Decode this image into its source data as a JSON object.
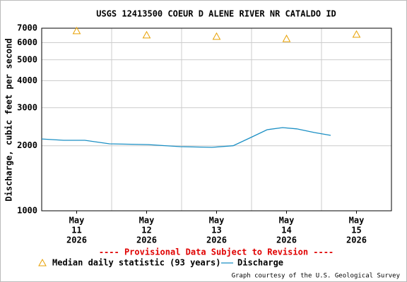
{
  "chart_data": {
    "type": "line",
    "title": "USGS 12413500 COEUR D ALENE RIVER NR CATALDO ID",
    "y_label": "Discharge, cubic feet per second",
    "annotation": "---- Provisional Data Subject to Revision ----",
    "credit": "Graph courtesy of the U.S. Geological Survey",
    "log_y": true,
    "grid": true,
    "xlim": [
      11,
      16
    ],
    "xgrid": [
      12,
      13,
      14,
      15
    ],
    "xticks": [
      {
        "value": 11.5,
        "label": [
          "May",
          "11",
          "2026"
        ]
      },
      {
        "value": 12.5,
        "label": [
          "May",
          "12",
          "2026"
        ]
      },
      {
        "value": 13.5,
        "label": [
          "May",
          "13",
          "2026"
        ]
      },
      {
        "value": 14.5,
        "label": [
          "May",
          "14",
          "2026"
        ]
      },
      {
        "value": 15.5,
        "label": [
          "May",
          "15",
          "2026"
        ]
      }
    ],
    "ylim": [
      1000,
      7000
    ],
    "yticks": [
      1000,
      2000,
      3000,
      4000,
      5000,
      6000,
      7000
    ],
    "series": [
      {
        "name": "Median daily statistic (93 years)",
        "color": "#e8a000",
        "marker": "triangle",
        "x": [
          11.5,
          12.5,
          13.5,
          14.5,
          15.5
        ],
        "values": [
          6800,
          6500,
          6400,
          6250,
          6550
        ]
      },
      {
        "name": "Discharge",
        "color": "#1a8fc4",
        "marker": "none",
        "x": [
          11.0,
          11.313,
          11.616,
          11.97,
          12.525,
          12.98,
          13.434,
          13.737,
          13.99,
          14.222,
          14.444,
          14.646,
          14.899,
          15.131
        ],
        "values": [
          2150,
          2120,
          2120,
          2042,
          2025,
          1981,
          1966,
          2000,
          2184,
          2373,
          2427,
          2394,
          2302,
          2235
        ]
      }
    ]
  }
}
